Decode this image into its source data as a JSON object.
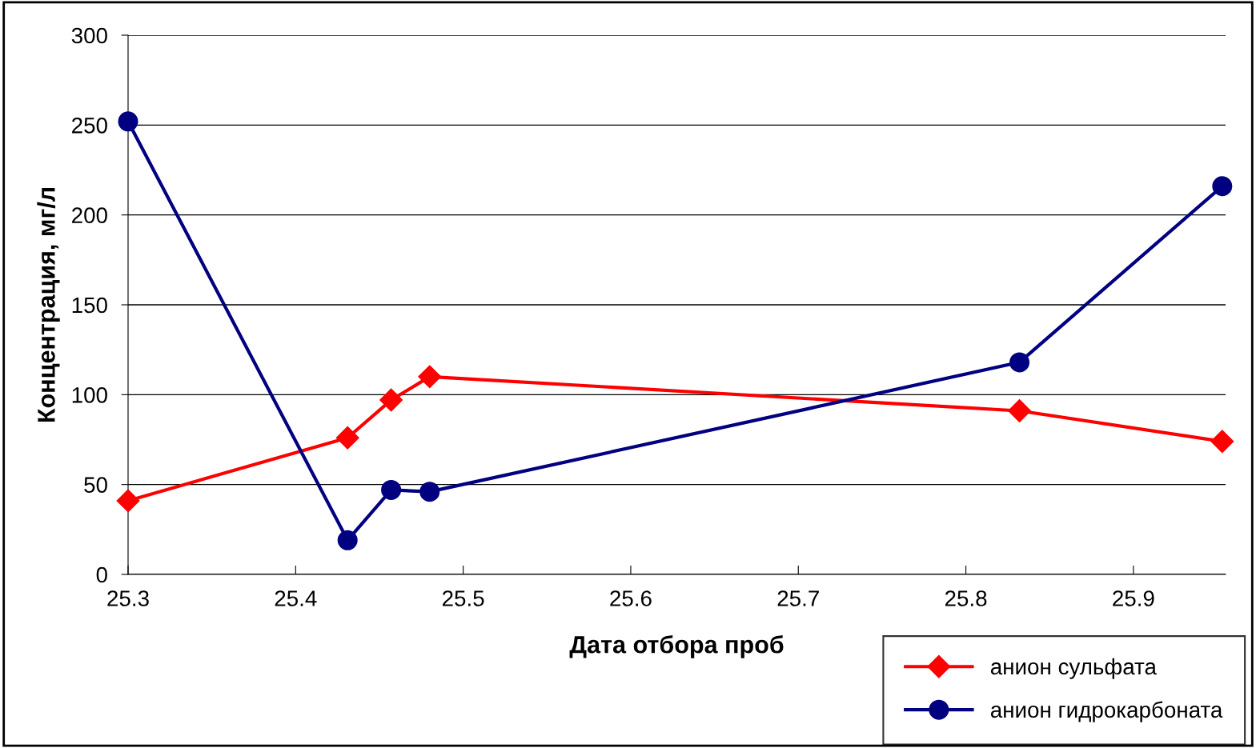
{
  "chart_data": {
    "type": "line",
    "xlabel": "Дата отбора проб",
    "ylabel": "Концентрация, мг/л",
    "xlim": [
      25.3,
      25.955
    ],
    "xticks": [
      {
        "value": 25.3,
        "label": "25.3"
      },
      {
        "value": 25.4,
        "label": "25.4"
      },
      {
        "value": 25.5,
        "label": "25.5"
      },
      {
        "value": 25.6,
        "label": "25.6"
      },
      {
        "value": 25.7,
        "label": "25.7"
      },
      {
        "value": 25.8,
        "label": "25.8"
      },
      {
        "value": 25.9,
        "label": "25.9"
      }
    ],
    "ylim": [
      0,
      300
    ],
    "yticks": [
      0,
      50,
      100,
      150,
      200,
      250,
      300
    ],
    "grid": "y",
    "legend": "bottom right",
    "x": [
      25.3,
      25.431,
      25.457,
      25.48,
      25.832,
      25.953
    ],
    "series": [
      {
        "name": "анион сульфата",
        "color": "#ff0000",
        "marker": "diamond",
        "values": [
          41,
          76,
          97,
          110,
          91,
          74
        ]
      },
      {
        "name": "анион гидрокарбоната",
        "color": "#000080",
        "marker": "circle",
        "values": [
          252,
          19,
          47,
          46,
          118,
          216
        ]
      }
    ]
  }
}
